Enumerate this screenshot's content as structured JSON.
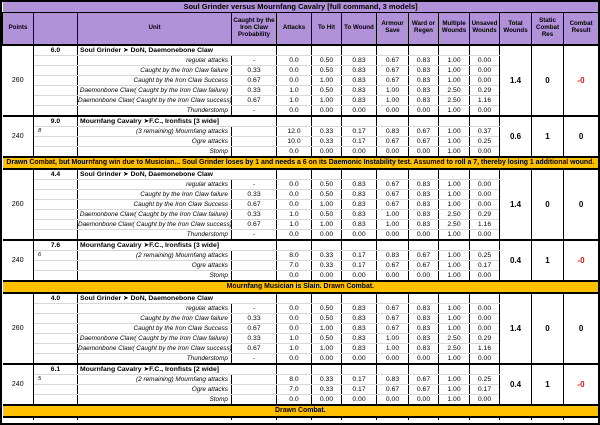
{
  "title": "Soul Grinder versus Mournfang Cavalry [full command, 3 models]",
  "colors": {
    "header_purple": "#B192D9",
    "banner_orange": "#FFC000",
    "negative_red": "#FF0000"
  },
  "columns": [
    "Points",
    "",
    "Unit",
    "Caught by the Iron Claw Probability",
    "Attacks",
    "To Hit",
    "To Wound",
    "Armour Save",
    "Ward or Regen",
    "Multiple Wounds",
    "Unsaved Wounds",
    "Total Wounds",
    "Static Combat Res",
    "Combat Result"
  ],
  "sections": [
    {
      "type": "block",
      "points": "260",
      "score": "6.0",
      "unit": "Soul Grinder ➤ DoN, Daemonebone Claw",
      "rows": [
        {
          "note": "",
          "label": "regular attacks",
          "prob": "-",
          "values": [
            "0.0",
            "0.50",
            "0.83",
            "0.67",
            "0.83",
            "1.00",
            "0.00"
          ]
        },
        {
          "note": "",
          "label": "Caught by the Iron Claw failure",
          "prob": "0.33",
          "values": [
            "0.0",
            "0.50",
            "0.83",
            "0.67",
            "0.83",
            "1.00",
            "0.00"
          ]
        },
        {
          "note": "",
          "label": "Caught by the Iron Claw Success",
          "prob": "0.67",
          "values": [
            "0.0",
            "1.00",
            "0.83",
            "0.67",
            "0.83",
            "1.00",
            "0.00"
          ]
        },
        {
          "note": "",
          "label": "Daemonbone Claw( Caught by the Iron Claw failure)",
          "prob": "0.33",
          "values": [
            "1.0",
            "0.50",
            "0.83",
            "1.00",
            "0.83",
            "2.50",
            "0.29"
          ]
        },
        {
          "note": "",
          "label": "Daemonbone Claw( Caught by the Iron Claw success)",
          "prob": "0.67",
          "values": [
            "1.0",
            "1.00",
            "0.83",
            "1.00",
            "0.83",
            "2.50",
            "1.16"
          ]
        },
        {
          "note": "",
          "label": "Thunderstomp",
          "prob": "-",
          "values": [
            "0.0",
            "0.00",
            "0.00",
            "0.00",
            "0.00",
            "1.00",
            "0.00"
          ]
        }
      ],
      "total_wounds": "1.4",
      "static_cr": "0",
      "combat_result": "-0",
      "result_negative": true
    },
    {
      "type": "block",
      "points": "240",
      "score": "9.0",
      "unit": "Mournfang Cavalry ➤F.C., Ironfists [3 wide]",
      "rows": [
        {
          "note": "8",
          "label": "(3 remaining) Mournfang attacks",
          "prob": "",
          "values": [
            "12.0",
            "0.33",
            "0.17",
            "0.83",
            "0.67",
            "1.00",
            "0.37"
          ]
        },
        {
          "note": "",
          "label": "Ogre attacks",
          "prob": "",
          "values": [
            "10.0",
            "0.33",
            "0.17",
            "0.67",
            "0.67",
            "1.00",
            "0.25"
          ]
        },
        {
          "note": "",
          "label": "Stomp",
          "prob": "",
          "values": [
            "0.0",
            "0.00",
            "0.00",
            "0.00",
            "0.00",
            "1.00",
            "0.00"
          ]
        }
      ],
      "total_wounds": "0.6",
      "static_cr": "1",
      "combat_result": "0",
      "result_negative": false
    },
    {
      "type": "banner",
      "text": "Drawn Combat, but Mournfang win due to Musician... Soul Grinder loses by 1 and needs a 6 on its Daemonic Instability test.  Assumed to roll a 7, thereby losing 1 additional wound."
    },
    {
      "type": "block",
      "points": "260",
      "score": "4.4",
      "unit": "Soul Grinder ➤ DoN, Daemonebone Claw",
      "rows": [
        {
          "note": "",
          "label": "regular attacks",
          "prob": "-",
          "values": [
            "0.0",
            "0.50",
            "0.83",
            "0.67",
            "0.83",
            "1.00",
            "0.00"
          ]
        },
        {
          "note": "",
          "label": "Caught by the Iron Claw failure",
          "prob": "0.33",
          "values": [
            "0.0",
            "0.50",
            "0.83",
            "0.67",
            "0.83",
            "1.00",
            "0.00"
          ]
        },
        {
          "note": "",
          "label": "Caught by the Iron Claw Success",
          "prob": "0.67",
          "values": [
            "0.0",
            "1.00",
            "0.83",
            "0.67",
            "0.83",
            "1.00",
            "0.00"
          ]
        },
        {
          "note": "",
          "label": "Daemonbone Claw( Caught by the Iron Claw failure)",
          "prob": "0.33",
          "values": [
            "1.0",
            "0.50",
            "0.83",
            "1.00",
            "0.83",
            "2.50",
            "0.29"
          ]
        },
        {
          "note": "",
          "label": "Daemonbone Claw( Caught by the Iron Claw success)",
          "prob": "0.67",
          "values": [
            "1.0",
            "1.00",
            "0.83",
            "1.00",
            "0.83",
            "2.50",
            "1.16"
          ]
        },
        {
          "note": "",
          "label": "Thunderstomp",
          "prob": "-",
          "values": [
            "0.0",
            "0.00",
            "0.00",
            "0.00",
            "0.00",
            "1.00",
            "0.00"
          ]
        }
      ],
      "total_wounds": "1.4",
      "static_cr": "0",
      "combat_result": "0",
      "result_negative": false
    },
    {
      "type": "block",
      "points": "240",
      "score": "7.6",
      "unit": "Mournfang Cavalry ➤F.C., Ironfists [3 wide]",
      "rows": [
        {
          "note": "6",
          "label": "(2 remaining) Mournfang attacks",
          "prob": "",
          "values": [
            "8.0",
            "0.33",
            "0.17",
            "0.83",
            "0.67",
            "1.00",
            "0.25"
          ]
        },
        {
          "note": "",
          "label": "Ogre attacks",
          "prob": "",
          "values": [
            "7.0",
            "0.33",
            "0.17",
            "0.67",
            "0.67",
            "1.00",
            "0.17"
          ]
        },
        {
          "note": "",
          "label": "Stomp",
          "prob": "",
          "values": [
            "0.0",
            "0.00",
            "0.00",
            "0.00",
            "0.00",
            "1.00",
            "0.00"
          ]
        }
      ],
      "total_wounds": "0.4",
      "static_cr": "1",
      "combat_result": "-0",
      "result_negative": true
    },
    {
      "type": "banner",
      "text": "Mournfang Musician is Slain.  Drawn Combat."
    },
    {
      "type": "block",
      "points": "260",
      "score": "4.0",
      "unit": "Soul Grinder ➤ DoN, Daemonebone Claw",
      "rows": [
        {
          "note": "",
          "label": "regular attacks",
          "prob": "-",
          "values": [
            "0.0",
            "0.50",
            "0.83",
            "0.67",
            "0.83",
            "1.00",
            "0.00"
          ]
        },
        {
          "note": "",
          "label": "Caught by the Iron Claw failure",
          "prob": "0.33",
          "values": [
            "0.0",
            "0.50",
            "0.83",
            "0.67",
            "0.83",
            "1.00",
            "0.00"
          ]
        },
        {
          "note": "",
          "label": "Caught by the Iron Claw Success",
          "prob": "0.67",
          "values": [
            "0.0",
            "1.00",
            "0.83",
            "0.67",
            "0.83",
            "1.00",
            "0.00"
          ]
        },
        {
          "note": "",
          "label": "Daemonbone Claw( Caught by the Iron Claw failure)",
          "prob": "0.33",
          "values": [
            "1.0",
            "0.50",
            "0.83",
            "1.00",
            "0.83",
            "2.50",
            "0.29"
          ]
        },
        {
          "note": "",
          "label": "Daemonbone Claw( Caught by the Iron Claw success)",
          "prob": "0.67",
          "values": [
            "1.0",
            "1.00",
            "0.83",
            "1.00",
            "0.83",
            "2.50",
            "1.16"
          ]
        },
        {
          "note": "",
          "label": "Thunderstomp",
          "prob": "-",
          "values": [
            "0.0",
            "0.00",
            "0.00",
            "0.00",
            "0.00",
            "1.00",
            "0.00"
          ]
        }
      ],
      "total_wounds": "1.4",
      "static_cr": "0",
      "combat_result": "0",
      "result_negative": false
    },
    {
      "type": "block",
      "points": "240",
      "score": "6.1",
      "unit": "Mournfang Cavalry ➤F.C., Ironfists [2 wide]",
      "rows": [
        {
          "note": "5",
          "label": "(2 remaining) Mournfang attacks",
          "prob": "",
          "values": [
            "8.0",
            "0.33",
            "0.17",
            "0.83",
            "0.67",
            "1.00",
            "0.25"
          ]
        },
        {
          "note": "",
          "label": "Ogre attacks",
          "prob": "",
          "values": [
            "7.0",
            "0.33",
            "0.17",
            "0.67",
            "0.67",
            "1.00",
            "0.17"
          ]
        },
        {
          "note": "",
          "label": "Stomp",
          "prob": "",
          "values": [
            "0.0",
            "0.00",
            "0.00",
            "0.00",
            "0.00",
            "1.00",
            "0.00"
          ]
        }
      ],
      "total_wounds": "0.4",
      "static_cr": "1",
      "combat_result": "-0",
      "result_negative": true
    },
    {
      "type": "banner",
      "text": "Drawn Combat."
    }
  ]
}
